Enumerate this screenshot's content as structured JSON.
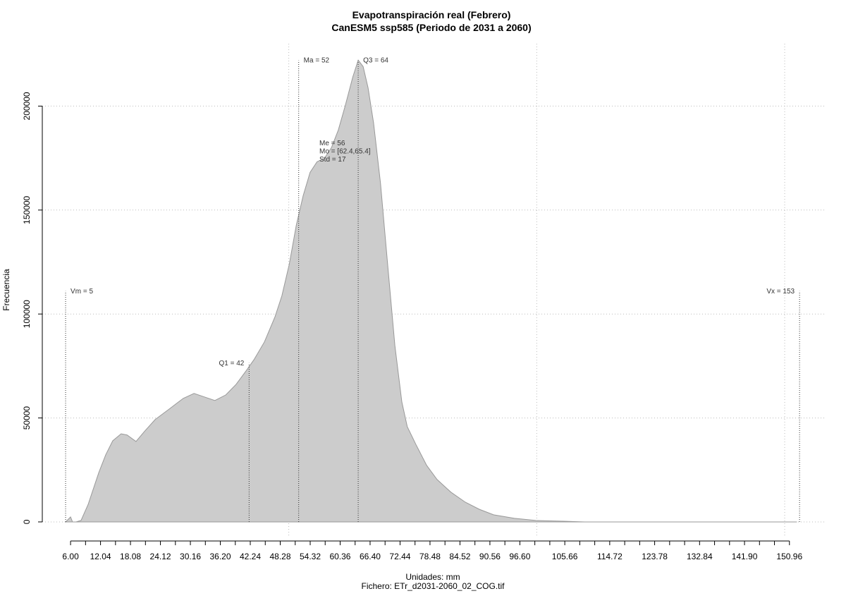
{
  "chart_data": {
    "type": "area",
    "title": "Evapotranspiración real (Febrero)",
    "subtitle": "CanESM5 ssp585 (Periodo de 2031 a 2060)",
    "x_label": "Unidades: mm",
    "caption": "Fichero: ETr_d2031-2060_02_COG.tif",
    "y_label": "Frecuencia",
    "color": "#cccccc",
    "line_color": "#999999",
    "x": [
      5,
      6,
      6.4,
      7.1,
      8.1,
      9.55,
      11.7,
      13.1,
      14.5,
      16.2,
      17.4,
      19.2,
      20.9,
      23.05,
      25.9,
      28.7,
      30.9,
      33.0,
      35.1,
      37.3,
      39.4,
      41.5,
      43.0,
      45.1,
      47.2,
      48.6,
      50.1,
      51.5,
      52.9,
      54.3,
      55.7,
      57.2,
      58.6,
      60.0,
      61.4,
      62.9,
      64.0,
      65.0,
      66.0,
      67.1,
      68.5,
      70.0,
      71.4,
      72.8,
      73.9,
      75.6,
      77.8,
      79.9,
      82.7,
      85.6,
      88.4,
      91.3,
      95.5,
      99.8,
      105.5,
      109.7,
      152.4
    ],
    "values": [
      0,
      2400,
      0,
      0,
      700,
      8500,
      23800,
      32300,
      39000,
      42400,
      41800,
      38700,
      43500,
      49200,
      54300,
      59400,
      61800,
      60100,
      58400,
      61100,
      66200,
      73000,
      78100,
      86600,
      98500,
      108700,
      123900,
      142600,
      156900,
      168100,
      173200,
      174900,
      180000,
      188500,
      200300,
      213900,
      222100,
      219000,
      208800,
      191900,
      163000,
      122200,
      84900,
      57700,
      45800,
      37400,
      27200,
      20400,
      14300,
      9500,
      6100,
      3400,
      1700,
      700,
      340,
      0,
      0
    ],
    "xlim": [
      0.3,
      158.1
    ],
    "ylim": [
      -6800,
      230000
    ],
    "xticks": [
      {
        "value": 6,
        "label": "6.00"
      },
      12.04,
      18.08,
      24.12,
      30.16,
      {
        "value": 36.2,
        "label": "36.20"
      },
      42.24,
      48.28,
      54.32,
      60.36,
      {
        "value": 66.4,
        "label": "66.40"
      },
      72.44,
      78.48,
      84.52,
      90.56,
      {
        "value": 96.6,
        "label": "96.60"
      },
      105.66,
      114.72,
      123.78,
      132.84,
      {
        "value": 141.9,
        "label": "141.90"
      },
      150.96
    ],
    "yticks": [
      0,
      50000,
      100000,
      150000,
      200000
    ],
    "xgrid": [
      50,
      100,
      150
    ],
    "grid": true,
    "annotations": [
      {
        "text": "Vm = 5",
        "x": 5,
        "y": 111000
      },
      {
        "text": "Q1 = 42",
        "x": 42,
        "y": 76400
      },
      {
        "text": "Ma = 52",
        "x": 52,
        "y": 222000
      },
      {
        "text": "Q3 = 64",
        "x": 64,
        "y": 222000
      },
      {
        "text": "Vx = 153",
        "x": 153,
        "y": 111000
      }
    ],
    "stats": [
      "Me = 56",
      "Mo = [62.4,65.4]",
      "Std = 17"
    ]
  }
}
